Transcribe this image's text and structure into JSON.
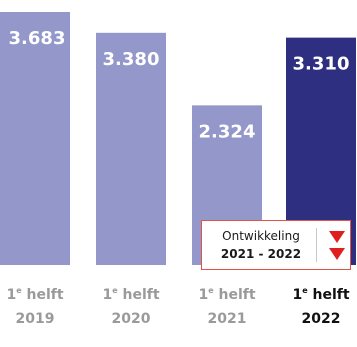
{
  "chart_data": {
    "type": "bar",
    "categories": [
      {
        "prefix": "1",
        "sup": "e",
        "suffix": " helft",
        "year": "2019"
      },
      {
        "prefix": "1",
        "sup": "e",
        "suffix": " helft",
        "year": "2020"
      },
      {
        "prefix": "1",
        "sup": "e",
        "suffix": " helft",
        "year": "2021"
      },
      {
        "prefix": "1",
        "sup": "e",
        "suffix": " helft",
        "year": "2022"
      }
    ],
    "values": [
      3683,
      3380,
      2324,
      3310
    ],
    "value_labels": [
      "3.683",
      "3.380",
      "2.324",
      "3.310"
    ],
    "highlight_index": 3,
    "bar_colors": [
      "#9397c9",
      "#9397c9",
      "#9397c9",
      "#2e2f80"
    ],
    "ylim": [
      0,
      3683
    ],
    "grid": false,
    "legend": "none",
    "xlabel": "",
    "ylabel": ""
  },
  "development": {
    "label": "Ontwikkeling",
    "period": "2021 - 2022",
    "trend_icons": [
      "down-arrow-icon",
      "down-arrow-icon"
    ],
    "arrow_color": "#e01e1e",
    "border_color": "#e0554b"
  }
}
